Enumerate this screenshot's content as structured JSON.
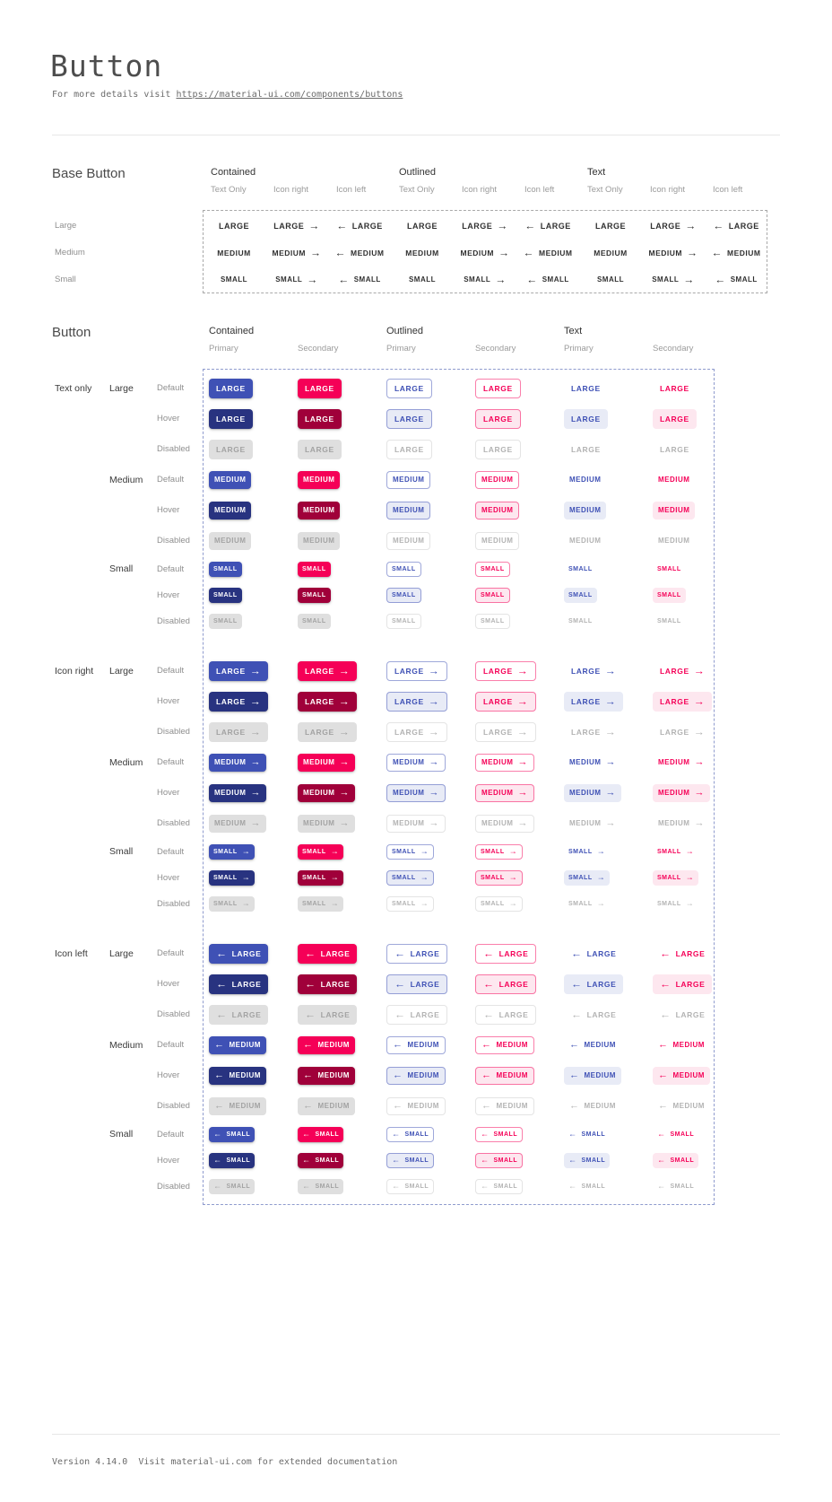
{
  "page": {
    "title": "Button",
    "subtitle_prefix": "For more details visit ",
    "subtitle_link": "https://material-ui.com/components/buttons",
    "footer": "Version 4.14.0  Visit material-ui.com for extended documentation"
  },
  "colors": {
    "primary": "#3f51b5",
    "primary_hover": "#283380",
    "secondary": "#f50057",
    "secondary_hover": "#a0003a",
    "primary_tint": "#e8ebf6",
    "secondary_tint": "#fde7ef",
    "disabled_bg": "#dfdfdf",
    "disabled_text": "#a3a3a3",
    "disabled_text_2": "#b3b3b3",
    "outlined_primary_border": "rgba(63,81,181,0.5)",
    "outlined_secondary_border": "rgba(245,0,87,0.5)",
    "outlined_disabled_border": "#e4e4e4"
  },
  "base_section": {
    "title": "Base Button",
    "groups": [
      "Contained",
      "Outlined",
      "Text"
    ],
    "subcolumns": [
      "Text Only",
      "Icon right",
      "Icon left"
    ],
    "icon_kinds": [
      "none",
      "right",
      "left"
    ],
    "rows": [
      {
        "label": "Large",
        "text": "LARGE",
        "size": "large"
      },
      {
        "label": "Medium",
        "text": "MEDIUM",
        "size": "medium"
      },
      {
        "label": "Small",
        "text": "SMALL",
        "size": "small"
      }
    ]
  },
  "button_section": {
    "title": "Button",
    "groups": [
      "Contained",
      "Outlined",
      "Text"
    ],
    "subcolumns": [
      "Primary",
      "Secondary"
    ],
    "variants": [
      {
        "variant": "contained",
        "color": "primary"
      },
      {
        "variant": "contained",
        "color": "secondary"
      },
      {
        "variant": "outlined",
        "color": "primary"
      },
      {
        "variant": "outlined",
        "color": "secondary"
      },
      {
        "variant": "text",
        "color": "primary"
      },
      {
        "variant": "text",
        "color": "secondary"
      }
    ],
    "icon_groups": [
      {
        "label": "Text only",
        "icon": "none"
      },
      {
        "label": "Icon right",
        "icon": "right"
      },
      {
        "label": "Icon left",
        "icon": "left"
      }
    ],
    "sizes": [
      {
        "label": "Large",
        "text": "LARGE",
        "size": "large"
      },
      {
        "label": "Medium",
        "text": "MEDIUM",
        "size": "medium"
      },
      {
        "label": "Small",
        "text": "SMALL",
        "size": "small"
      }
    ],
    "states": [
      {
        "label": "Default",
        "state": "default"
      },
      {
        "label": "Hover",
        "state": "hover"
      },
      {
        "label": "Disabled",
        "state": "disabled"
      }
    ]
  },
  "icons": {
    "arrow_right": "→",
    "arrow_left": "←"
  }
}
